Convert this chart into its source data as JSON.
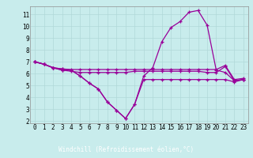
{
  "xlabel": "Windchill (Refroidissement éolien,°C)",
  "bg_color": "#c8ecec",
  "grid_color": "#b0d8d8",
  "line_color": "#990099",
  "x_hours": [
    0,
    1,
    2,
    3,
    4,
    5,
    6,
    7,
    8,
    9,
    10,
    11,
    12,
    13,
    14,
    15,
    16,
    17,
    18,
    19,
    20,
    21,
    22,
    23
  ],
  "windchill": [
    7.0,
    6.8,
    6.5,
    6.3,
    6.3,
    5.8,
    5.2,
    4.7,
    3.6,
    2.9,
    2.2,
    3.4,
    5.8,
    6.5,
    8.7,
    9.9,
    10.4,
    11.2,
    11.35,
    10.1,
    6.3,
    6.1,
    5.4,
    5.5
  ],
  "temp": [
    7.0,
    6.8,
    6.5,
    6.4,
    6.35,
    6.35,
    6.35,
    6.35,
    6.35,
    6.35,
    6.35,
    6.35,
    6.35,
    6.35,
    6.35,
    6.35,
    6.35,
    6.35,
    6.35,
    6.35,
    6.35,
    6.7,
    5.5,
    5.6
  ],
  "min_line": [
    7.0,
    6.8,
    6.5,
    6.3,
    6.2,
    6.1,
    6.1,
    6.1,
    6.1,
    6.1,
    6.1,
    6.2,
    6.2,
    6.2,
    6.2,
    6.2,
    6.2,
    6.2,
    6.2,
    6.1,
    6.1,
    6.6,
    5.4,
    5.5
  ],
  "max_line": [
    7.0,
    6.8,
    6.5,
    6.4,
    6.3,
    5.8,
    5.2,
    4.7,
    3.6,
    2.9,
    2.2,
    3.4,
    5.5,
    5.5,
    5.5,
    5.5,
    5.5,
    5.5,
    5.5,
    5.5,
    5.5,
    5.5,
    5.3,
    5.5
  ],
  "ylim": [
    1.8,
    11.7
  ],
  "yticks": [
    2,
    3,
    4,
    5,
    6,
    7,
    8,
    9,
    10,
    11
  ],
  "xticks": [
    0,
    1,
    2,
    3,
    4,
    5,
    6,
    7,
    8,
    9,
    10,
    11,
    12,
    13,
    14,
    15,
    16,
    17,
    18,
    19,
    20,
    21,
    22,
    23
  ],
  "xlabel_bg": "#5555aa",
  "xlabel_color": "white",
  "xlabel_fontsize": 5.5,
  "tick_fontsize": 5.5,
  "label_bar_height": 0.115
}
